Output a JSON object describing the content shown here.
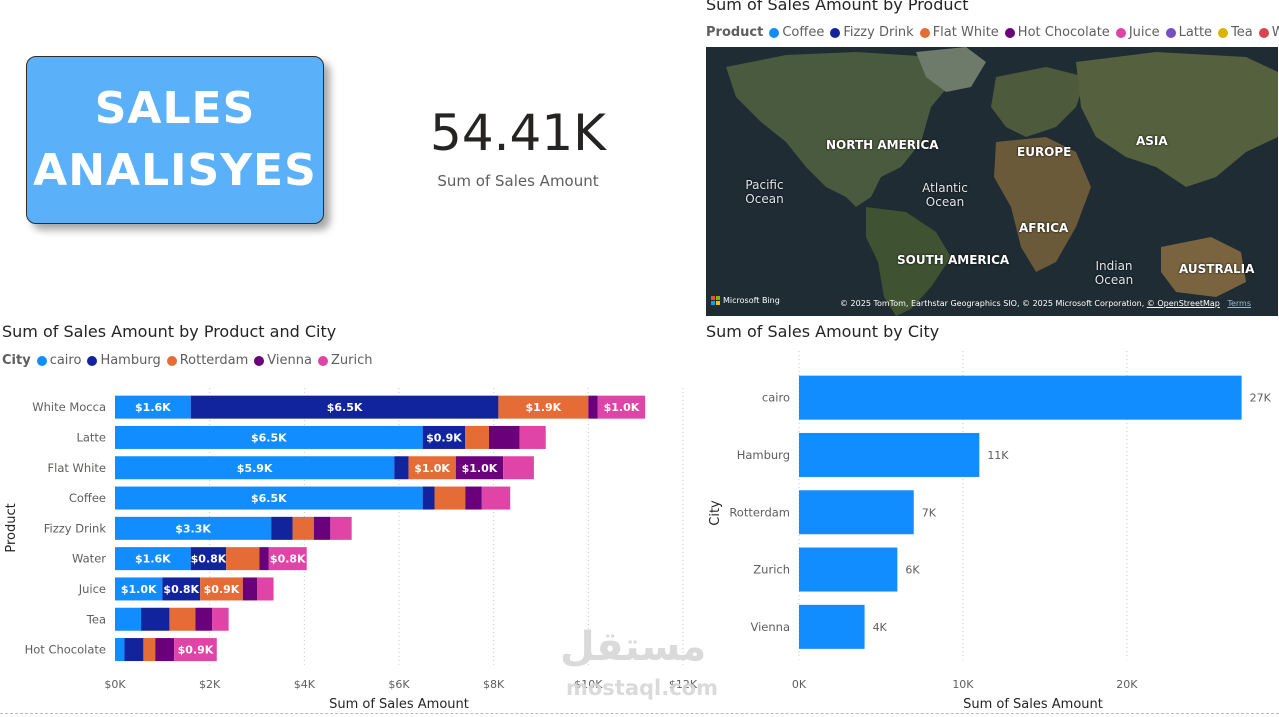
{
  "title_card": {
    "line1": "SALES",
    "line2": "ANALISYES"
  },
  "kpi": {
    "value": "54.41K",
    "label": "Sum of Sales Amount"
  },
  "map_visual": {
    "title": "Sum of Sales Amount by Product",
    "legend_title": "Product",
    "legend": [
      {
        "name": "Coffee",
        "color": "#118dff"
      },
      {
        "name": "Fizzy Drink",
        "color": "#12239e"
      },
      {
        "name": "Flat White",
        "color": "#e66c37"
      },
      {
        "name": "Hot Chocolate",
        "color": "#6b007b"
      },
      {
        "name": "Juice",
        "color": "#e044a7"
      },
      {
        "name": "Latte",
        "color": "#744ec2"
      },
      {
        "name": "Tea",
        "color": "#d9b300"
      },
      {
        "name": "Water",
        "color": "#d64550"
      }
    ],
    "continents": [
      "NORTH AMERICA",
      "EUROPE",
      "ASIA",
      "AFRICA",
      "SOUTH AMERICA",
      "AUSTRALIA"
    ],
    "oceans": {
      "pacific": "Pacific Ocean",
      "atlantic": "Atlantic Ocean",
      "indian": "Indian Ocean"
    },
    "bing_logo": "Microsoft Bing",
    "copyright": "© 2025 TomTom, Earthstar Geographics SIO, © 2025 Microsoft Corporation,",
    "osm_link": "© OpenStreetMap",
    "terms_link": "Terms"
  },
  "stacked_visual": {
    "title": "Sum of Sales Amount by Product and City",
    "legend_title": "City",
    "legend": [
      {
        "name": "cairo",
        "color": "#118dff"
      },
      {
        "name": "Hamburg",
        "color": "#12239e"
      },
      {
        "name": "Rotterdam",
        "color": "#e66c37"
      },
      {
        "name": "Vienna",
        "color": "#6b007b"
      },
      {
        "name": "Zurich",
        "color": "#e044a7"
      }
    ]
  },
  "city_visual": {
    "title": "Sum of Sales Amount by City"
  },
  "watermark": {
    "arabic": "مستقل",
    "latin": "mostaql.com"
  },
  "chart_data": [
    {
      "type": "bar",
      "orientation": "horizontal",
      "stacked": true,
      "title": "Sum of Sales Amount by Product and City",
      "xlabel": "Sum of Sales Amount",
      "ylabel": "Product",
      "xlim": [
        0,
        12000
      ],
      "xticks": [
        "$0K",
        "$2K",
        "$4K",
        "$6K",
        "$8K",
        "$10K",
        "$12K"
      ],
      "legend_position": "top-left",
      "categories": [
        "White Mocca",
        "Latte",
        "Flat White",
        "Coffee",
        "Fizzy Drink",
        "Water",
        "Juice",
        "Tea",
        "Hot Chocolate"
      ],
      "series": [
        {
          "name": "cairo",
          "color": "#118dff",
          "values": [
            1600,
            6500,
            5900,
            6500,
            3300,
            1600,
            1000,
            550,
            200
          ],
          "labels": [
            "$1.6K",
            "$6.5K",
            "$5.9K",
            "$6.5K",
            "$3.3K",
            "$1.6K",
            "$1.0K",
            "",
            ""
          ]
        },
        {
          "name": "Hamburg",
          "color": "#12239e",
          "values": [
            6500,
            900,
            300,
            250,
            450,
            750,
            800,
            600,
            400
          ],
          "labels": [
            "$6.5K",
            "$0.9K",
            "",
            "",
            "",
            "$0.8K",
            "$0.8K",
            "",
            ""
          ]
        },
        {
          "name": "Rotterdam",
          "color": "#e66c37",
          "values": [
            1900,
            500,
            1000,
            650,
            450,
            700,
            900,
            550,
            250
          ],
          "labels": [
            "$1.9K",
            "",
            "$1.0K",
            "",
            "",
            "",
            "$0.9K",
            "",
            ""
          ]
        },
        {
          "name": "Vienna",
          "color": "#6b007b",
          "values": [
            200,
            650,
            1000,
            350,
            350,
            200,
            300,
            350,
            400
          ],
          "labels": [
            "",
            "",
            "$1.0K",
            "",
            "",
            "",
            "",
            "",
            ""
          ]
        },
        {
          "name": "Zurich",
          "color": "#e044a7",
          "values": [
            1000,
            550,
            650,
            600,
            450,
            800,
            350,
            350,
            900
          ],
          "labels": [
            "$1.0K",
            "",
            "",
            "",
            "",
            "$0.8K",
            "",
            "",
            "$0.9K"
          ]
        }
      ]
    },
    {
      "type": "bar",
      "orientation": "horizontal",
      "title": "Sum of Sales Amount by City",
      "xlabel": "Sum of Sales Amount",
      "ylabel": "City",
      "xlim": [
        0,
        28000
      ],
      "xticks": [
        "0K",
        "10K",
        "20K"
      ],
      "color": "#118dff",
      "categories": [
        "cairo",
        "Hamburg",
        "Rotterdam",
        "Zurich",
        "Vienna"
      ],
      "values": [
        27000,
        11000,
        7000,
        6000,
        4000
      ],
      "labels": [
        "27K",
        "11K",
        "7K",
        "6K",
        "4K"
      ]
    }
  ]
}
